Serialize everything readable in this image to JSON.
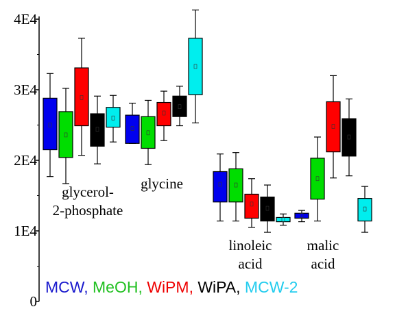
{
  "chart_data": {
    "type": "box",
    "title": "",
    "xlabel": "",
    "ylabel": "",
    "ylim": [
      0,
      40000
    ],
    "y_ticks": [
      {
        "value": 0,
        "label": "0"
      },
      {
        "value": 10000,
        "label": "1E4"
      },
      {
        "value": 20000,
        "label": "2E4"
      },
      {
        "value": 30000,
        "label": "3E4"
      },
      {
        "value": 40000,
        "label": "4E4"
      }
    ],
    "groups": [
      {
        "lines": [
          "glycerol-",
          "2-phosphate"
        ],
        "label_anchor": "middle"
      },
      {
        "lines": [
          "glycine"
        ],
        "label_anchor": "middle"
      },
      {
        "lines": [
          "linoleic",
          "acid"
        ],
        "label_anchor": "middle"
      },
      {
        "lines": [
          "malic",
          "acid"
        ],
        "label_anchor": "middle"
      }
    ],
    "series": [
      {
        "name": "MCW",
        "color": "#0000ee",
        "legend_color": "#1a1acd"
      },
      {
        "name": "MeOH",
        "color": "#00dd00",
        "legend_color": "#22c022"
      },
      {
        "name": "WiPM",
        "color": "#ff0000",
        "legend_color": "#ee0000"
      },
      {
        "name": "WiPA",
        "color": "#000000",
        "legend_color": "#000000"
      },
      {
        "name": "MCW-2",
        "color": "#00eeee",
        "legend_color": "#22ccee"
      }
    ],
    "boxes": [
      [
        {
          "min": 17700,
          "q1": 21500,
          "median": 25000,
          "q3": 28800,
          "max": 32300
        },
        {
          "min": 16700,
          "q1": 20400,
          "median": 23600,
          "q3": 26900,
          "max": 30200
        },
        {
          "min": 20700,
          "q1": 24900,
          "median": 28900,
          "q3": 33100,
          "max": 37300
        },
        {
          "min": 19500,
          "q1": 22000,
          "median": 24400,
          "q3": 26600,
          "max": 29100
        },
        {
          "min": 22600,
          "q1": 24700,
          "median": 26000,
          "q3": 27500,
          "max": 29200
        }
      ],
      [
        {
          "min": 22400,
          "q1": 22400,
          "median": 24500,
          "q3": 26400,
          "max": 28100
        },
        {
          "min": 19400,
          "q1": 21700,
          "median": 23900,
          "q3": 26200,
          "max": 28500
        },
        {
          "min": 22800,
          "q1": 24900,
          "median": 26700,
          "q3": 28200,
          "max": 29800
        },
        {
          "min": 24900,
          "q1": 26200,
          "median": 27600,
          "q3": 29100,
          "max": 30500
        },
        {
          "min": 25300,
          "q1": 29300,
          "median": 33300,
          "q3": 37300,
          "max": 41300
        }
      ],
      [
        {
          "min": 11400,
          "q1": 14100,
          "median": 16600,
          "q3": 18400,
          "max": 20900
        },
        {
          "min": 11400,
          "q1": 14100,
          "median": 16500,
          "q3": 18800,
          "max": 21100
        },
        {
          "min": 10500,
          "q1": 11800,
          "median": 13800,
          "q3": 15200,
          "max": 17400
        },
        {
          "min": 9800,
          "q1": 11400,
          "median": 13200,
          "q3": 14800,
          "max": 16500
        },
        {
          "min": 10800,
          "q1": 11300,
          "median": 11600,
          "q3": 11900,
          "max": 12400
        }
      ],
      [
        {
          "min": 11300,
          "q1": 11800,
          "median": 12200,
          "q3": 12500,
          "max": 12900
        },
        {
          "min": 11400,
          "q1": 14500,
          "median": 17400,
          "q3": 20300,
          "max": 23300
        },
        {
          "min": 17500,
          "q1": 21200,
          "median": 24800,
          "q3": 28300,
          "max": 32000
        },
        {
          "min": 17800,
          "q1": 20600,
          "median": 23300,
          "q3": 25900,
          "max": 28700
        },
        {
          "min": 9800,
          "q1": 11400,
          "median": 13100,
          "q3": 14600,
          "max": 16300
        }
      ]
    ],
    "legend_position": "bottom",
    "grid": false
  }
}
